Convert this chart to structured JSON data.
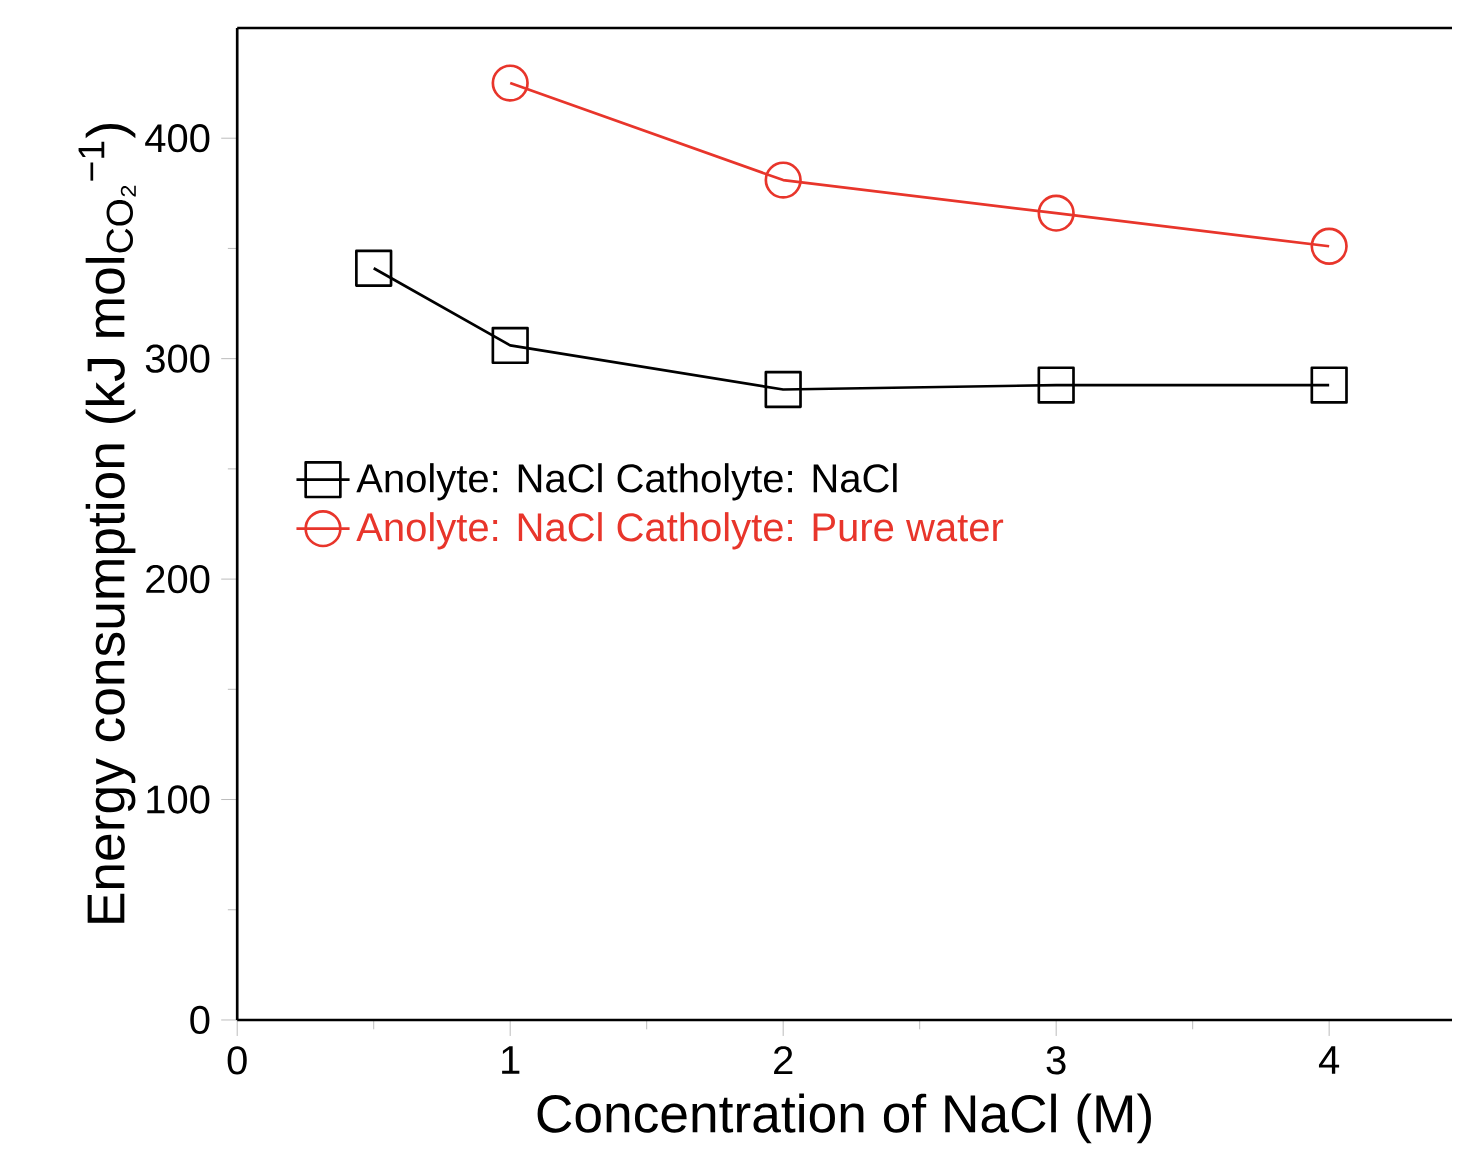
{
  "chart_data": {
    "type": "line",
    "xlabel": "Concentration of NaCl (M)",
    "ylabel": "Energy consumption (kJ mol$_{CO₂}$$^{−1}$)",
    "xlim": [
      0,
      4.45
    ],
    "xticks": [
      0,
      1,
      2,
      3,
      4
    ],
    "ylim": [
      0,
      450
    ],
    "yticks": [
      0,
      100,
      200,
      300,
      400
    ],
    "grid": false,
    "legend": "left",
    "line_style": "solid",
    "series": [
      {
        "name": "Anolyte:  NaCl  Catholyte:  NaCl",
        "color": "#000000",
        "marker": "square",
        "x": [
          0.5,
          1,
          2,
          3,
          4
        ],
        "values": [
          341,
          306,
          286,
          288,
          288
        ]
      },
      {
        "name": "Anolyte:  NaCl  Catholyte:  Pure water",
        "color": "#e8352b",
        "marker": "circle",
        "x": [
          1,
          2,
          3,
          4
        ],
        "values": [
          425,
          381,
          366,
          351
        ]
      }
    ]
  }
}
